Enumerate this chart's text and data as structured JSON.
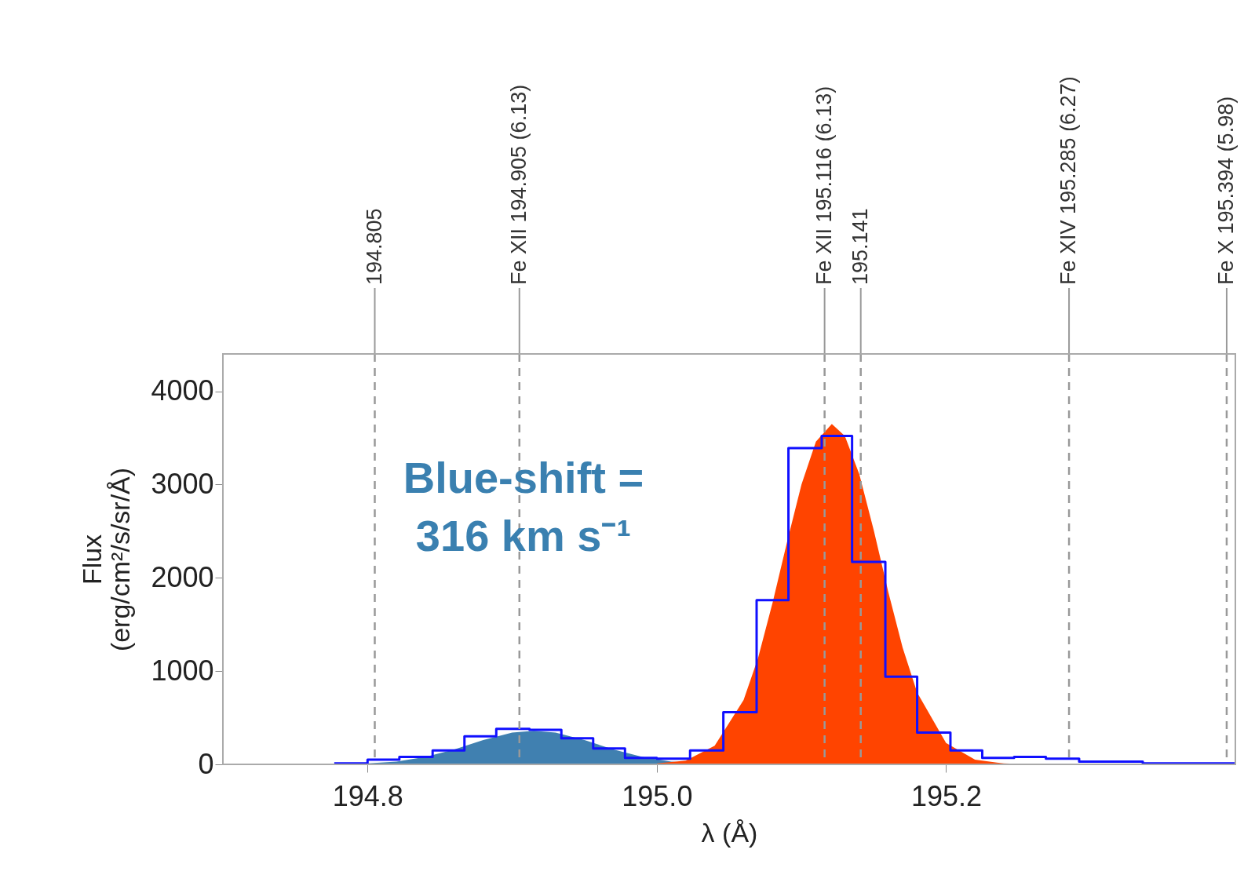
{
  "chart_data": {
    "type": "step",
    "xlabel": "λ (Å)",
    "ylabel": "Flux\n(erg/cm²/s/sr/Å)",
    "xlim": [
      194.7,
      195.4
    ],
    "ylim": [
      0,
      4400
    ],
    "xticks": [
      194.8,
      {
        "value": 195.0,
        "label": "195.0"
      },
      195.2
    ],
    "yticks": [
      0,
      1000,
      2000,
      3000,
      4000
    ],
    "grid": false,
    "series": [
      {
        "type": "area",
        "color": "#4080b0",
        "x": [
          194.78,
          194.8,
          194.82,
          194.84,
          194.86,
          194.88,
          194.9,
          194.915,
          194.93,
          194.95,
          194.97,
          194.99,
          195.01,
          195.03,
          195.05
        ],
        "values": [
          0,
          10,
          30,
          80,
          160,
          260,
          340,
          360,
          340,
          260,
          160,
          80,
          30,
          10,
          0
        ]
      },
      {
        "type": "area",
        "color": "#ff4400",
        "x": [
          195.0,
          195.02,
          195.04,
          195.06,
          195.07,
          195.08,
          195.09,
          195.1,
          195.11,
          195.121,
          195.13,
          195.14,
          195.15,
          195.16,
          195.17,
          195.18,
          195.2,
          195.22,
          195.24,
          195.26
        ],
        "values": [
          10,
          40,
          200,
          690,
          1140,
          1730,
          2380,
          3000,
          3460,
          3650,
          3520,
          3110,
          2510,
          1850,
          1250,
          770,
          230,
          50,
          10,
          0
        ]
      },
      {
        "color": "#1010ff",
        "x": [
          194.777,
          194.8,
          194.822,
          194.845,
          194.867,
          194.889,
          194.912,
          194.934,
          194.956,
          194.978,
          195.0,
          195.023,
          195.046,
          195.069,
          195.091,
          195.114,
          195.135,
          195.158,
          195.18,
          195.203,
          195.225,
          195.247,
          195.269,
          195.292,
          195.314,
          195.336,
          195.358,
          195.38,
          195.4
        ],
        "values": [
          10,
          50,
          80,
          150,
          300,
          380,
          370,
          280,
          170,
          70,
          60,
          150,
          560,
          1760,
          3390,
          3520,
          2170,
          940,
          340,
          150,
          70,
          80,
          60,
          30,
          30,
          10,
          10,
          10,
          10
        ]
      }
    ],
    "ref_lines": [
      {
        "axis": "x",
        "value": 194.805,
        "label": "194.805",
        "color": "#999999",
        "line_style": "dashed"
      },
      {
        "axis": "x",
        "value": 194.905,
        "label": "Fe XII  194.905  (6.13)",
        "color": "#999999",
        "line_style": "dashed"
      },
      {
        "axis": "x",
        "value": 195.116,
        "label": "Fe XII  195.116  (6.13)",
        "color": "#999999",
        "line_style": "dashed"
      },
      {
        "axis": "x",
        "value": 195.141,
        "label": "195.141",
        "color": "#999999",
        "line_style": "dashed"
      },
      {
        "axis": "x",
        "value": 195.285,
        "label": "Fe XIV  195.285  (6.27)",
        "color": "#999999",
        "line_style": "dashed"
      },
      {
        "axis": "x",
        "value": 195.394,
        "label": "Fe X  195.394  (5.98)",
        "color": "#999999",
        "line_style": "dashed"
      }
    ],
    "annotations": [
      "Blue-shift =\n316 km s⁻¹"
    ]
  }
}
